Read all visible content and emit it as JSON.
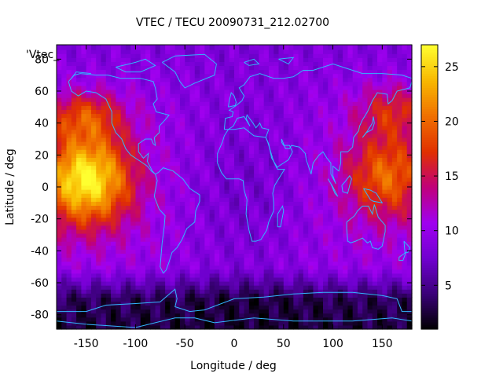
{
  "chart_data": {
    "type": "heatmap",
    "title": "VTEC / TECU 20090731_212.02700",
    "xlabel": "Longitude / deg",
    "ylabel": "Latitude / deg",
    "legend_key": "'Vtec_",
    "xlim": [
      -180,
      180
    ],
    "ylim": [
      -89,
      89
    ],
    "xticks": [
      -150,
      -100,
      -50,
      0,
      50,
      100,
      150
    ],
    "yticks": [
      -80,
      -60,
      -40,
      -20,
      0,
      20,
      40,
      60,
      80
    ],
    "colorbar": {
      "range": [
        1,
        27
      ],
      "ticks": [
        5,
        10,
        15,
        20,
        25
      ],
      "colormap": [
        "#000000",
        "#3a0078",
        "#7000d0",
        "#a000f0",
        "#c0007a",
        "#e03000",
        "#f07000",
        "#f8b800",
        "#ffff30"
      ]
    },
    "grid": false,
    "features": {
      "daytime_max_region": {
        "lon_range": [
          -180,
          -120
        ],
        "lat_range": [
          -20,
          30
        ],
        "max_tecu": 24
      },
      "secondary_max_region": {
        "lon_range": [
          130,
          180
        ],
        "lat_range": [
          -15,
          30
        ],
        "max_tecu": 18
      },
      "polar_min_region": {
        "lat_range": [
          -89,
          -70
        ],
        "min_tecu": 1
      }
    },
    "overlay": "coastlines",
    "colors": {
      "coastline": "#33b5ff"
    }
  }
}
